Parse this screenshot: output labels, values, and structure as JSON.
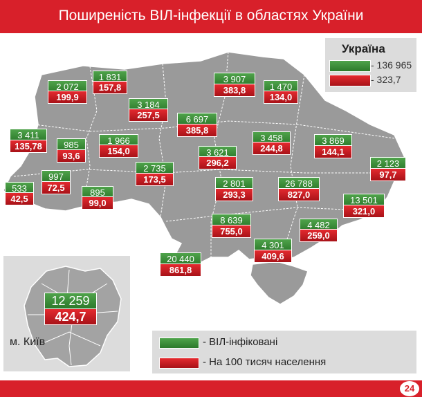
{
  "title": "Поширеність ВІЛ-інфекції в областях України",
  "colors": {
    "accent": "#d8202a",
    "infected": "#3d8f3a",
    "per100k": "#c51b22",
    "map_fill": "#9a9a9a"
  },
  "ukraine": {
    "title": "Україна",
    "infected": "- 136 965",
    "per100k": "- 323,7"
  },
  "legend": {
    "infected": "- ВІЛ-інфіковані",
    "per100k": "- На 100 тисяч населення"
  },
  "kyiv": {
    "label": "м. Київ",
    "infected": "12 259",
    "per100k": "424,7"
  },
  "regions": [
    {
      "infected": "2 072",
      "per100k": "199,9"
    },
    {
      "infected": "1 831",
      "per100k": "157,8"
    },
    {
      "infected": "3 907",
      "per100k": "383,8"
    },
    {
      "infected": "1 470",
      "per100k": "134,0"
    },
    {
      "infected": "3 184",
      "per100k": "257,5"
    },
    {
      "infected": "6 697",
      "per100k": "385,8"
    },
    {
      "infected": "3 411",
      "per100k": "135,78"
    },
    {
      "infected": "985",
      "per100k": "93,6"
    },
    {
      "infected": "1 966",
      "per100k": "154,0"
    },
    {
      "infected": "3 458",
      "per100k": "244,8"
    },
    {
      "infected": "3 869",
      "per100k": "144,1"
    },
    {
      "infected": "3 621",
      "per100k": "296,2"
    },
    {
      "infected": "2 123",
      "per100k": "97,7"
    },
    {
      "infected": "2 735",
      "per100k": "173,5"
    },
    {
      "infected": "997",
      "per100k": "72,5"
    },
    {
      "infected": "533",
      "per100k": "42,5"
    },
    {
      "infected": "895",
      "per100k": "99,0"
    },
    {
      "infected": "2 801",
      "per100k": "293,3"
    },
    {
      "infected": "26 788",
      "per100k": "827,0"
    },
    {
      "infected": "13 501",
      "per100k": "321,0"
    },
    {
      "infected": "8 639",
      "per100k": "755,0"
    },
    {
      "infected": "4 482",
      "per100k": "259,0"
    },
    {
      "infected": "4 301",
      "per100k": "409,6"
    },
    {
      "infected": "20 440",
      "per100k": "861,8"
    }
  ]
}
